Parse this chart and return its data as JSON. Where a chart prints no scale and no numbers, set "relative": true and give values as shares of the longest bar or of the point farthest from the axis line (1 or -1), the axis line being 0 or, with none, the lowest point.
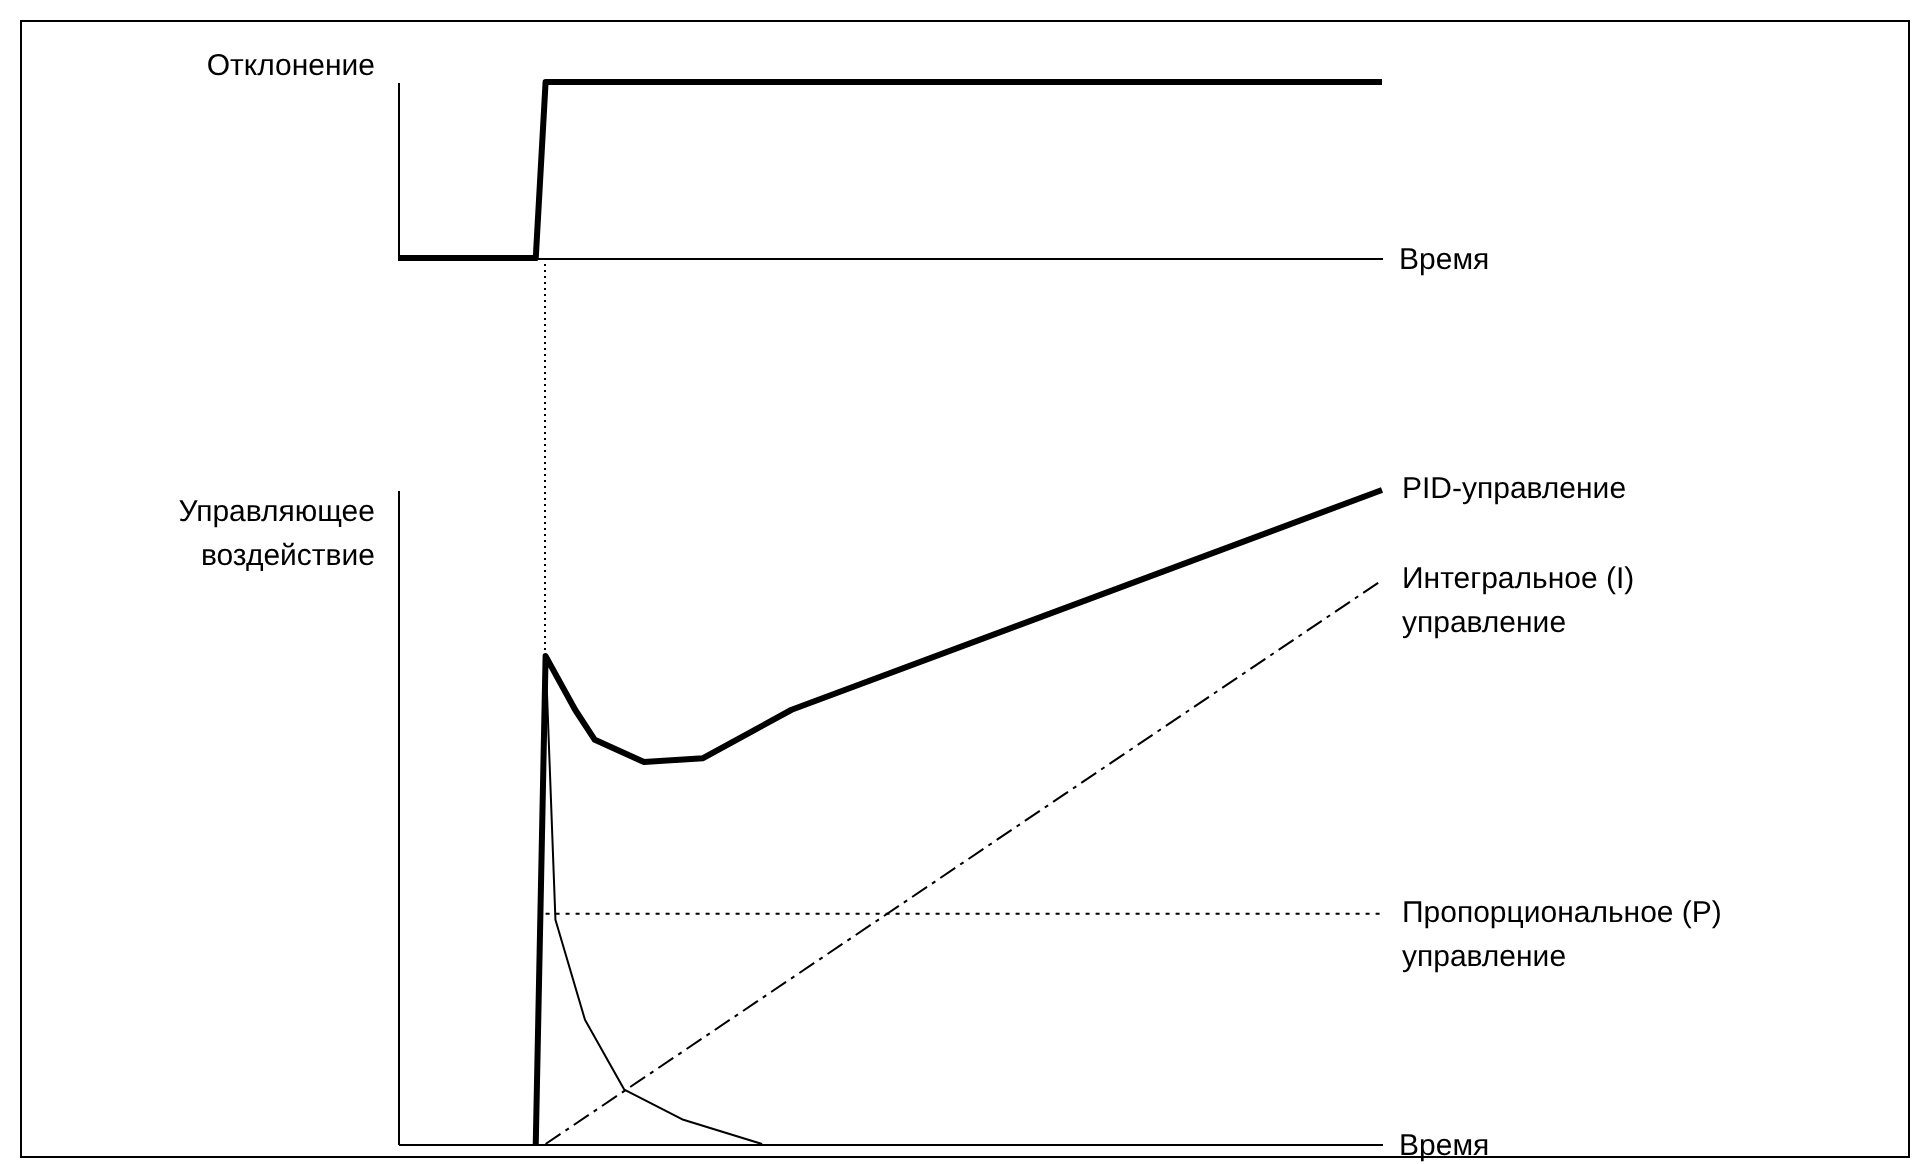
{
  "chart_data": [
    {
      "type": "line",
      "relative": true,
      "ylabel": "Отклонение",
      "xlabel": "Время",
      "tick_labels": false,
      "categories": [
        null,
        null,
        null,
        null,
        null,
        null,
        null,
        null,
        null,
        null,
        null,
        null,
        null,
        null,
        null,
        null,
        null,
        null,
        null,
        null,
        null,
        null,
        null,
        null,
        null,
        null,
        null,
        null,
        null,
        null,
        null,
        null,
        null,
        null,
        null,
        null,
        null,
        null,
        null,
        null,
        null,
        null,
        null,
        null,
        null,
        null,
        null,
        null,
        null,
        null,
        null,
        null,
        null,
        null,
        null,
        null,
        null,
        null,
        null,
        null,
        null,
        null,
        null,
        null,
        null,
        null,
        null,
        null,
        null,
        null,
        null,
        null,
        null,
        null,
        null,
        null,
        null,
        null,
        null,
        null,
        null,
        null,
        null,
        null,
        null,
        null,
        null,
        null,
        null,
        null,
        null,
        null,
        null,
        null,
        null,
        null,
        null,
        null,
        null,
        null,
        null
      ],
      "series": [
        {
          "color": "#000000",
          "line_style": "solid",
          "values": [
            0,
            null,
            null,
            null,
            null,
            null,
            null,
            null,
            null,
            null,
            null,
            null,
            null,
            null,
            0,
            1,
            null,
            null,
            null,
            null,
            null,
            null,
            null,
            null,
            null,
            null,
            null,
            null,
            null,
            null,
            null,
            null,
            null,
            null,
            null,
            null,
            null,
            null,
            null,
            null,
            null,
            null,
            null,
            null,
            null,
            null,
            null,
            null,
            null,
            null,
            null,
            null,
            null,
            null,
            null,
            null,
            null,
            null,
            null,
            null,
            null,
            null,
            null,
            null,
            null,
            null,
            null,
            null,
            null,
            null,
            null,
            null,
            null,
            null,
            null,
            null,
            null,
            null,
            null,
            null,
            null,
            null,
            null,
            null,
            null,
            null,
            null,
            null,
            null,
            null,
            null,
            null,
            null,
            null,
            null,
            null,
            null,
            null,
            null,
            null,
            1
          ]
        }
      ]
    },
    {
      "type": "line",
      "relative": true,
      "ylabel": "Управляющее\nвоздействие",
      "xlabel": "Время",
      "tick_labels": false,
      "categories": [
        null,
        null,
        null,
        null,
        null,
        null,
        null,
        null,
        null,
        null,
        null,
        null,
        null,
        null,
        null,
        null,
        null,
        null,
        null,
        null,
        null,
        null,
        null,
        null,
        null,
        null,
        null,
        null,
        null,
        null,
        null,
        null,
        null,
        null,
        null,
        null,
        null,
        null,
        null,
        null,
        null,
        null,
        null,
        null,
        null,
        null,
        null,
        null,
        null,
        null,
        null,
        null,
        null,
        null,
        null,
        null,
        null,
        null,
        null,
        null,
        null,
        null,
        null,
        null,
        null,
        null,
        null,
        null,
        null,
        null,
        null,
        null,
        null,
        null,
        null,
        null,
        null,
        null,
        null,
        null,
        null,
        null,
        null,
        null,
        null,
        null,
        null,
        null,
        null,
        null,
        null,
        null,
        null,
        null,
        null,
        null,
        null,
        null,
        null,
        null,
        null
      ],
      "series": [
        {
          "name": "PID-управление",
          "color": "#000000",
          "line_style": "solid",
          "values": [
            null,
            null,
            null,
            null,
            null,
            null,
            null,
            null,
            null,
            null,
            null,
            null,
            null,
            null,
            0,
            0.746,
            null,
            null,
            0.664,
            null,
            0.618,
            null,
            null,
            null,
            null,
            0.584,
            null,
            null,
            null,
            null,
            null,
            0.59,
            null,
            null,
            null,
            null,
            null,
            null,
            null,
            null,
            0.664,
            null,
            null,
            null,
            null,
            null,
            null,
            null,
            null,
            null,
            null,
            null,
            null,
            null,
            null,
            null,
            null,
            null,
            null,
            null,
            null,
            null,
            null,
            null,
            null,
            null,
            null,
            null,
            null,
            null,
            null,
            null,
            null,
            null,
            null,
            null,
            null,
            null,
            null,
            null,
            null,
            null,
            null,
            null,
            null,
            null,
            null,
            null,
            null,
            null,
            null,
            null,
            null,
            null,
            null,
            null,
            null,
            null,
            null,
            null,
            1
          ]
        },
        {
          "name": "Интегральное (I)\nуправление",
          "color": "#000000",
          "line_style": "dashed",
          "values": [
            null,
            null,
            null,
            null,
            null,
            null,
            null,
            null,
            null,
            null,
            null,
            null,
            null,
            null,
            null,
            0,
            null,
            null,
            null,
            null,
            null,
            null,
            null,
            null,
            null,
            null,
            null,
            null,
            null,
            null,
            null,
            null,
            null,
            null,
            null,
            null,
            null,
            null,
            null,
            null,
            null,
            null,
            null,
            null,
            null,
            null,
            null,
            null,
            null,
            null,
            null,
            null,
            null,
            null,
            null,
            null,
            null,
            null,
            null,
            null,
            null,
            null,
            null,
            null,
            null,
            null,
            null,
            null,
            null,
            null,
            null,
            null,
            null,
            null,
            null,
            null,
            null,
            null,
            null,
            null,
            null,
            null,
            null,
            null,
            null,
            null,
            null,
            null,
            null,
            null,
            null,
            null,
            null,
            null,
            null,
            null,
            null,
            null,
            null,
            null,
            0.862
          ]
        },
        {
          "name": "Пропорциональное (P)\nуправление",
          "color": "#000000",
          "line_style": "dotted",
          "values": [
            null,
            null,
            null,
            null,
            null,
            null,
            null,
            null,
            null,
            null,
            null,
            null,
            null,
            null,
            null,
            0.352,
            null,
            null,
            null,
            null,
            null,
            null,
            null,
            null,
            null,
            null,
            null,
            null,
            null,
            null,
            null,
            null,
            null,
            null,
            null,
            null,
            null,
            null,
            null,
            null,
            null,
            null,
            null,
            null,
            null,
            null,
            null,
            null,
            null,
            null,
            null,
            null,
            null,
            null,
            null,
            null,
            null,
            null,
            null,
            null,
            null,
            null,
            null,
            null,
            null,
            null,
            null,
            null,
            null,
            null,
            null,
            null,
            null,
            null,
            null,
            null,
            null,
            null,
            null,
            null,
            null,
            null,
            null,
            null,
            null,
            null,
            null,
            null,
            null,
            null,
            null,
            null,
            null,
            null,
            null,
            null,
            null,
            null,
            null,
            null,
            0.352
          ]
        },
        {
          "color": "#000000",
          "line_style": "solid",
          "values": [
            null,
            null,
            null,
            null,
            null,
            null,
            null,
            null,
            null,
            null,
            null,
            null,
            null,
            null,
            null,
            0.746,
            0.343,
            null,
            null,
            0.19,
            null,
            null,
            null,
            0.083,
            null,
            null,
            null,
            null,
            null,
            0.037,
            null,
            null,
            null,
            null,
            null,
            null,
            null,
            0,
            null,
            null,
            null,
            null,
            null,
            null,
            null,
            null,
            null,
            null,
            null,
            null,
            null,
            null,
            null,
            null,
            null,
            null,
            null,
            null,
            null,
            null,
            null,
            null,
            null,
            null,
            null,
            null,
            null,
            null,
            null,
            null,
            null,
            null,
            null,
            null,
            null,
            null,
            null,
            null,
            null,
            null,
            null,
            null,
            null,
            null,
            null,
            null,
            null,
            null,
            null,
            null,
            null,
            null,
            null,
            null,
            null,
            null,
            null,
            null,
            null,
            null,
            null
          ]
        }
      ]
    }
  ]
}
